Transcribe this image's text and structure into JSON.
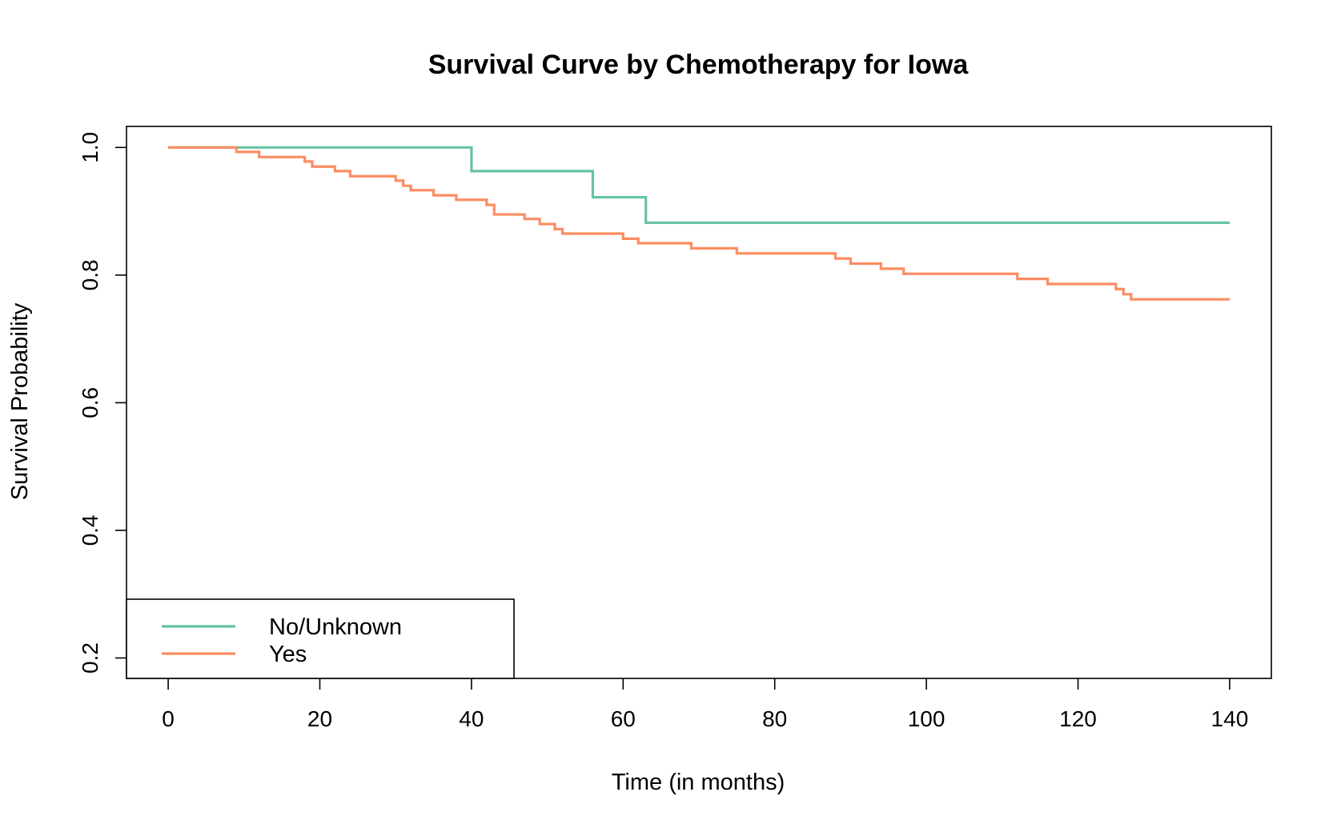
{
  "chart_data": {
    "type": "line",
    "step": true,
    "title": "Survival Curve by Chemotherapy for Iowa",
    "xlabel": "Time (in months)",
    "ylabel": "Survival Probability",
    "xlim": [
      -5.5,
      145.5
    ],
    "ylim": [
      0.168,
      1.033
    ],
    "xticks": [
      0,
      20,
      40,
      60,
      80,
      100,
      120,
      140
    ],
    "yticks": [
      0.2,
      0.4,
      0.6,
      0.8,
      1.0
    ],
    "ytick_labels": [
      "0.2",
      "0.4",
      "0.6",
      "0.8",
      "1.0"
    ],
    "grid": false,
    "legend_position": "bottom-left",
    "series": [
      {
        "name": "No/Unknown",
        "color": "#66c2a5",
        "points": [
          [
            0,
            1.0
          ],
          [
            40,
            0.963
          ],
          [
            56,
            0.922
          ],
          [
            63,
            0.882
          ],
          [
            140,
            0.882
          ]
        ]
      },
      {
        "name": "Yes",
        "color": "#fc8d62",
        "points": [
          [
            0,
            1.0
          ],
          [
            9,
            0.993
          ],
          [
            12,
            0.985
          ],
          [
            18,
            0.978
          ],
          [
            19,
            0.97
          ],
          [
            22,
            0.963
          ],
          [
            24,
            0.955
          ],
          [
            30,
            0.948
          ],
          [
            31,
            0.94
          ],
          [
            32,
            0.933
          ],
          [
            35,
            0.925
          ],
          [
            38,
            0.918
          ],
          [
            42,
            0.91
          ],
          [
            43,
            0.895
          ],
          [
            47,
            0.888
          ],
          [
            49,
            0.88
          ],
          [
            51,
            0.872
          ],
          [
            52,
            0.865
          ],
          [
            60,
            0.857
          ],
          [
            62,
            0.85
          ],
          [
            69,
            0.842
          ],
          [
            75,
            0.834
          ],
          [
            88,
            0.826
          ],
          [
            90,
            0.818
          ],
          [
            94,
            0.81
          ],
          [
            97,
            0.802
          ],
          [
            112,
            0.794
          ],
          [
            116,
            0.786
          ],
          [
            125,
            0.778
          ],
          [
            126,
            0.77
          ],
          [
            127,
            0.762
          ],
          [
            140,
            0.762
          ]
        ]
      }
    ]
  }
}
